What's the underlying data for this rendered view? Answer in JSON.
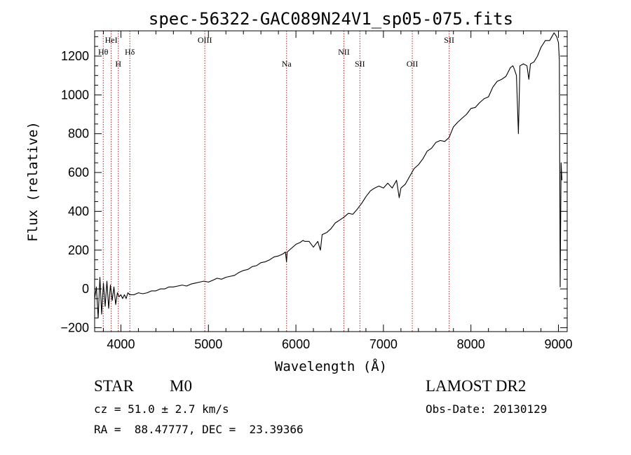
{
  "chart_data": {
    "type": "line",
    "title": "spec-56322-GAC089N24V1_sp05-075.fits",
    "xlabel": "Wavelength (Å)",
    "ylabel": "Flux (relative)",
    "xlim": [
      3700,
      9100
    ],
    "ylim": [
      -220,
      1330
    ],
    "x_ticks": [
      4000,
      5000,
      6000,
      7000,
      8000,
      9000
    ],
    "y_ticks": [
      -200,
      0,
      200,
      400,
      600,
      800,
      1000,
      1200
    ],
    "x_tick_labels": [
      "4000",
      "5000",
      "6000",
      "7000",
      "8000",
      "9000"
    ],
    "y_tick_labels": [
      "−200",
      "0",
      "200",
      "400",
      "600",
      "800",
      "1000",
      "1200"
    ],
    "grid": false,
    "line_color": "#000000",
    "marker_color": "#b22222",
    "line_markers": [
      {
        "label": "Hθ",
        "wavelength": 3798,
        "row": 2
      },
      {
        "label": "HeI",
        "wavelength": 3889,
        "row": 1
      },
      {
        "label": "H",
        "wavelength": 3970,
        "row": 3
      },
      {
        "label": "Hδ",
        "wavelength": 4102,
        "row": 2
      },
      {
        "label": "OIII",
        "wavelength": 4959,
        "row": 1
      },
      {
        "label": "Na",
        "wavelength": 5893,
        "row": 3
      },
      {
        "label": "NII",
        "wavelength": 6548,
        "row": 2
      },
      {
        "label": "SII",
        "wavelength": 6731,
        "row": 3
      },
      {
        "label": "OII",
        "wavelength": 7330,
        "row": 3
      },
      {
        "label": "SII",
        "wavelength": 7751,
        "row": 1
      }
    ],
    "series": [
      {
        "x": [
          3700,
          3720,
          3740,
          3760,
          3780,
          3800,
          3820,
          3840,
          3860,
          3880,
          3900,
          3920,
          3940,
          3960,
          3980,
          4000,
          4020,
          4040,
          4060,
          4080,
          4100,
          4150,
          4200,
          4250,
          4300,
          4350,
          4400,
          4450,
          4500,
          4550,
          4600,
          4650,
          4700,
          4750,
          4800,
          4850,
          4900,
          4950,
          5000,
          5050,
          5100,
          5150,
          5200,
          5250,
          5300,
          5350,
          5400,
          5450,
          5500,
          5550,
          5600,
          5650,
          5700,
          5750,
          5800,
          5850,
          5880,
          5893,
          5900,
          5950,
          6000,
          6050,
          6080,
          6100,
          6150,
          6200,
          6250,
          6280,
          6300,
          6350,
          6400,
          6450,
          6500,
          6550,
          6600,
          6650,
          6700,
          6750,
          6800,
          6850,
          6900,
          6950,
          7000,
          7050,
          7100,
          7150,
          7180,
          7200,
          7250,
          7300,
          7350,
          7400,
          7450,
          7500,
          7550,
          7600,
          7650,
          7700,
          7750,
          7800,
          7850,
          7900,
          7950,
          8000,
          8050,
          8100,
          8150,
          8200,
          8250,
          8300,
          8350,
          8400,
          8450,
          8480,
          8498,
          8520,
          8542,
          8560,
          8600,
          8640,
          8662,
          8680,
          8720,
          8760,
          8800,
          8850,
          8900,
          8950,
          8980,
          9000,
          9010,
          9020,
          9030,
          9040
        ],
        "y": [
          -50,
          10,
          -150,
          60,
          -130,
          30,
          -90,
          40,
          -100,
          20,
          -60,
          10,
          -80,
          -20,
          -40,
          -30,
          -50,
          -30,
          -50,
          -20,
          -30,
          -30,
          -20,
          -25,
          -20,
          -10,
          -10,
          0,
          0,
          10,
          10,
          15,
          20,
          15,
          25,
          30,
          35,
          40,
          35,
          45,
          55,
          50,
          60,
          65,
          70,
          85,
          95,
          100,
          115,
          120,
          135,
          140,
          150,
          165,
          170,
          180,
          190,
          140,
          190,
          210,
          230,
          240,
          250,
          245,
          245,
          215,
          245,
          200,
          280,
          290,
          310,
          340,
          355,
          370,
          390,
          385,
          410,
          440,
          475,
          505,
          520,
          530,
          520,
          545,
          520,
          560,
          470,
          520,
          540,
          580,
          620,
          640,
          670,
          710,
          725,
          755,
          765,
          760,
          780,
          835,
          860,
          880,
          900,
          930,
          935,
          960,
          980,
          990,
          1040,
          1070,
          1080,
          1095,
          1140,
          1150,
          1130,
          1100,
          800,
          1150,
          1160,
          1150,
          1080,
          1160,
          1170,
          1200,
          1245,
          1280,
          1280,
          1320,
          1300,
          1270,
          1180,
          10,
          650,
          560
        ]
      }
    ]
  },
  "info": {
    "class_label": "STAR",
    "subclass_label": "M0",
    "redshift_line": "cz = 51.0 ± 2.7 km/s",
    "coords_line": "RA =  88.47777, DEC =  23.39366",
    "survey_label": "LAMOST DR2",
    "obs_date_line": "Obs-Date: 20130129"
  }
}
